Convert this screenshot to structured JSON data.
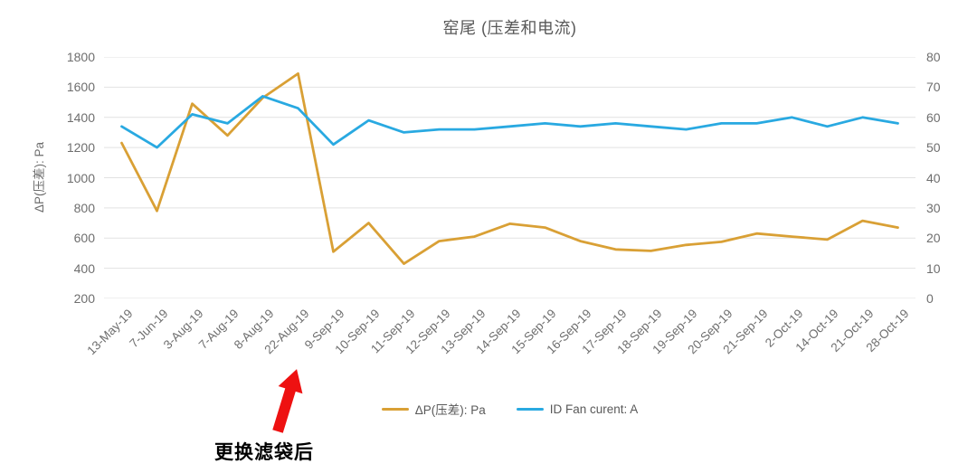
{
  "title": "窑尾 (压差和电流)",
  "chart_data": {
    "type": "line",
    "title": "窑尾 (压差和电流)",
    "categories": [
      "13-May-19",
      "7-Jun-19",
      "3-Aug-19",
      "7-Aug-19",
      "8-Aug-19",
      "22-Aug-19",
      "9-Sep-19",
      "10-Sep-19",
      "11-Sep-19",
      "12-Sep-19",
      "13-Sep-19",
      "14-Sep-19",
      "15-Sep-19",
      "16-Sep-19",
      "17-Sep-19",
      "18-Sep-19",
      "19-Sep-19",
      "20-Sep-19",
      "21-Sep-19",
      "2-Oct-19",
      "14-Oct-19",
      "21-Oct-19",
      "28-Oct-19"
    ],
    "series": [
      {
        "name": "ΔP(压差): Pa",
        "axis": "left",
        "color": "#D9A035",
        "values": [
          1230,
          780,
          1490,
          1280,
          1530,
          1690,
          510,
          700,
          430,
          580,
          610,
          695,
          670,
          580,
          525,
          515,
          555,
          575,
          630,
          610,
          590,
          715,
          670
        ]
      },
      {
        "name": "ID Fan curent: A",
        "axis": "right",
        "color": "#29A9E1",
        "values": [
          57,
          50,
          61,
          58,
          67,
          63,
          51,
          59,
          55,
          56,
          56,
          57,
          58,
          57,
          58,
          57,
          56,
          58,
          58,
          60,
          57,
          60,
          58
        ]
      }
    ],
    "left_axis": {
      "label": "ΔP(压差): Pa",
      "min": 200,
      "max": 1800,
      "step": 200,
      "ticks": [
        "1800",
        "1600",
        "1400",
        "1200",
        "1000",
        "800",
        "600",
        "400",
        "200"
      ]
    },
    "right_axis": {
      "min": 0,
      "max": 80,
      "step": 10,
      "ticks": [
        "80",
        "70",
        "60",
        "50",
        "40",
        "30",
        "20",
        "10",
        "0"
      ]
    },
    "grid": "horizontal",
    "legend_position": "bottom",
    "annotation": {
      "text": "更换滤袋后",
      "arrow_color": "#EE1111",
      "points_to_category": "22-Aug-19"
    }
  },
  "colors": {
    "title_text": "#595959",
    "tick_text": "#6e6e6e",
    "gridline": "#E2E2E2",
    "series_dp": "#D9A035",
    "series_fan": "#29A9E1",
    "annotation_arrow": "#EE1111",
    "annotation_text": "#000000"
  }
}
